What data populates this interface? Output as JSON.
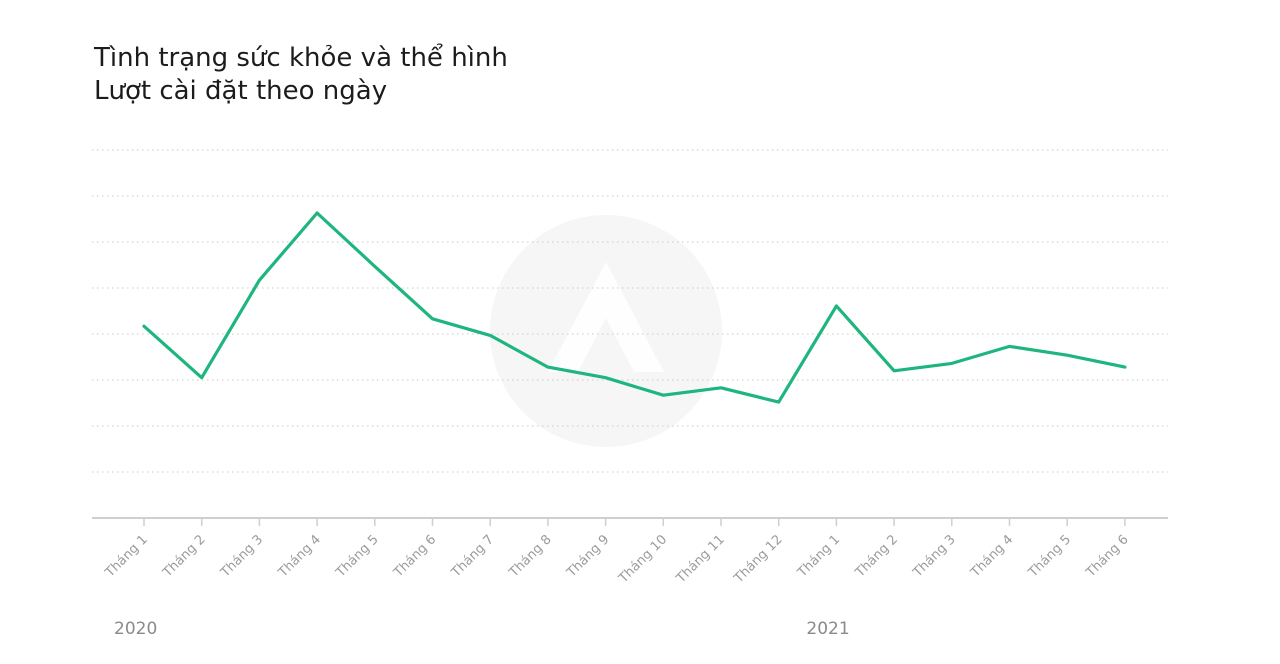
{
  "chart_data": {
    "type": "line",
    "title": "Tình trạng sức khỏe và thể hình",
    "subtitle": "Lượt cài đặt theo ngày",
    "categories": [
      "Tháng 1",
      "Tháng 2",
      "Tháng 3",
      "Tháng 4",
      "Tháng 5",
      "Tháng 6",
      "Tháng 7",
      "Tháng 8",
      "Tháng 9",
      "Tháng 10",
      "Tháng 11",
      "Tháng 12",
      "Tháng 1",
      "Tháng 2",
      "Tháng 3",
      "Tháng 4",
      "Tháng 5",
      "Tháng 6"
    ],
    "year_labels": [
      {
        "label": "2020",
        "category_index": 0
      },
      {
        "label": "2021",
        "category_index": 12
      }
    ],
    "series": [
      {
        "color": "#1fb57e",
        "values": [
          4.17,
          3.05,
          5.17,
          6.63,
          5.47,
          4.33,
          3.97,
          3.28,
          3.05,
          2.67,
          2.83,
          2.52,
          4.61,
          3.2,
          3.36,
          3.73,
          3.54,
          3.28
        ]
      }
    ],
    "ylim": [
      0,
      8
    ],
    "y_ticks_shown": false,
    "grid": "horizontal-dotted",
    "legend": "none"
  }
}
